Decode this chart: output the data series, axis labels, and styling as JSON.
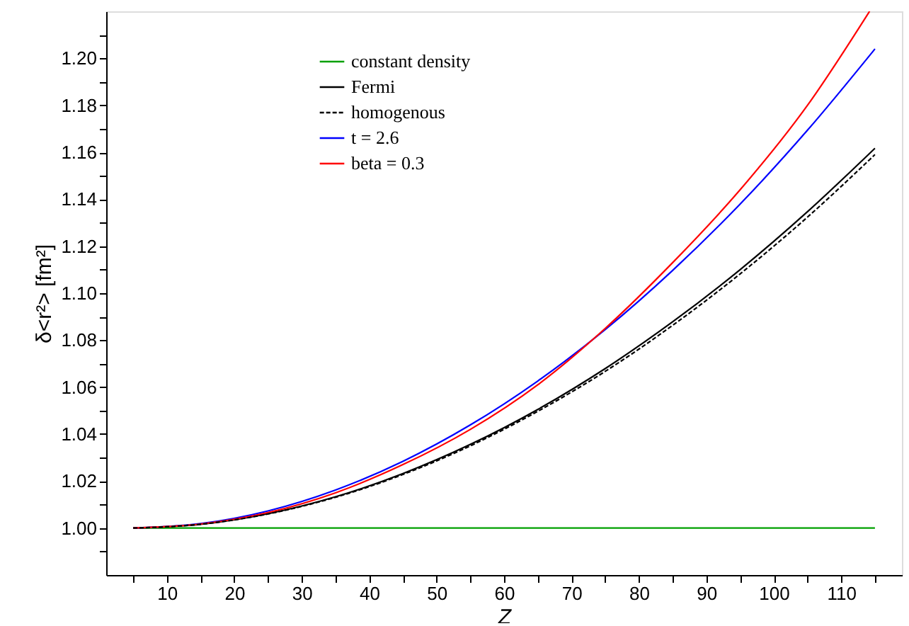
{
  "chart_data": {
    "type": "line",
    "xlabel": "Z",
    "ylabel": "δ<r²> [fm²]",
    "xlim": [
      1,
      119
    ],
    "ylim": [
      0.98,
      1.22
    ],
    "xticks": [
      {
        "value": 5,
        "label": null
      },
      10,
      {
        "value": 15,
        "label": null
      },
      20,
      {
        "value": 25,
        "label": null
      },
      30,
      {
        "value": 35,
        "label": null
      },
      40,
      {
        "value": 45,
        "label": null
      },
      50,
      {
        "value": 55,
        "label": null
      },
      60,
      {
        "value": 65,
        "label": null
      },
      70,
      {
        "value": 75,
        "label": null
      },
      80,
      {
        "value": 85,
        "label": null
      },
      90,
      {
        "value": 95,
        "label": null
      },
      100,
      {
        "value": 105,
        "label": null
      },
      110,
      {
        "value": 115,
        "label": null
      }
    ],
    "yticks": [
      {
        "value": 0.99,
        "label": null
      },
      {
        "value": 1.0,
        "label": "1.00"
      },
      {
        "value": 1.01,
        "label": null
      },
      1.02,
      {
        "value": 1.03,
        "label": null
      },
      1.04,
      {
        "value": 1.05,
        "label": null
      },
      1.06,
      {
        "value": 1.07,
        "label": null
      },
      1.08,
      {
        "value": 1.09,
        "label": null
      },
      {
        "value": 1.1,
        "label": "1.10"
      },
      {
        "value": 1.11,
        "label": null
      },
      1.12,
      {
        "value": 1.13,
        "label": null
      },
      1.14,
      {
        "value": 1.15,
        "label": null
      },
      1.16,
      {
        "value": 1.17,
        "label": null
      },
      1.18,
      {
        "value": 1.19,
        "label": null
      },
      {
        "value": 1.2,
        "label": "1.20"
      },
      {
        "value": 1.21,
        "label": null
      }
    ],
    "grid": false,
    "legend": "top",
    "marker": "none",
    "x": [
      5,
      15,
      25,
      35,
      45,
      55,
      65,
      75,
      85,
      95,
      105,
      115
    ],
    "series": [
      {
        "name": "constant density",
        "color": "#00a000",
        "line_style": "solid",
        "values": [
          1.0,
          1.0,
          1.0,
          1.0,
          1.0,
          1.0,
          1.0,
          1.0,
          1.0,
          1.0,
          1.0,
          1.0
        ]
      },
      {
        "name": "Fermi",
        "color": "#000000",
        "line_style": "solid",
        "values": [
          1.0,
          1.0016,
          1.0061,
          1.0133,
          1.0232,
          1.0356,
          1.0505,
          1.0679,
          1.0878,
          1.11,
          1.1347,
          1.1617
        ]
      },
      {
        "name": "homogenous",
        "color": "#000000",
        "line_style": "dashed",
        "values": [
          1.0,
          1.0016,
          1.006,
          1.0131,
          1.0228,
          1.035,
          1.0497,
          1.0667,
          1.0863,
          1.1082,
          1.1324,
          1.159
        ]
      },
      {
        "name": "t = 2.6",
        "color": "#0000ff",
        "line_style": "solid",
        "values": [
          1.0,
          1.0019,
          1.0073,
          1.0162,
          1.0284,
          1.0439,
          1.0626,
          1.0845,
          1.1097,
          1.1379,
          1.1694,
          1.204
        ]
      },
      {
        "name": "beta = 0.3",
        "color": "#ff0000",
        "line_style": "solid",
        "x": [
          5,
          15,
          25,
          35,
          45,
          55,
          65,
          75,
          85,
          95,
          105,
          114.2
        ],
        "values": [
          1.0,
          1.0017,
          1.0066,
          1.015,
          1.027,
          1.042,
          1.061,
          1.085,
          1.113,
          1.144,
          1.18,
          1.22
        ]
      }
    ]
  }
}
